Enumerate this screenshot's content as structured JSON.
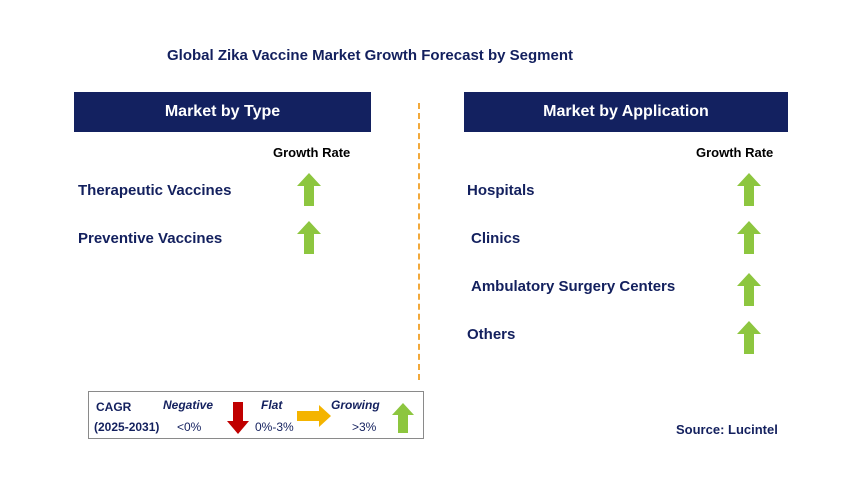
{
  "title": "Global Zika Vaccine Market Growth Forecast by Segment",
  "left_panel": {
    "header": "Market by Type",
    "growth_label": "Growth Rate",
    "items": [
      {
        "label": "Therapeutic Vaccines",
        "trend": "growing"
      },
      {
        "label": "Preventive Vaccines",
        "trend": "growing"
      }
    ]
  },
  "right_panel": {
    "header": "Market by Application",
    "growth_label": "Growth Rate",
    "items": [
      {
        "label": "Hospitals",
        "trend": "growing"
      },
      {
        "label": "Clinics",
        "trend": "growing"
      },
      {
        "label": "Ambulatory Surgery Centers",
        "trend": "growing"
      },
      {
        "label": "Others",
        "trend": "growing"
      }
    ]
  },
  "legend": {
    "cagr_label": "CAGR",
    "period": "(2025-2031)",
    "negative_label": "Negative",
    "negative_range": "<0%",
    "flat_label": "Flat",
    "flat_range": "0%-3%",
    "growing_label": "Growing",
    "growing_range": ">3%"
  },
  "source": "Source: Lucintel",
  "colors": {
    "header_bg": "#132160",
    "text_navy": "#13205e",
    "arrow_up": "#8dc63f",
    "arrow_down": "#c00000",
    "arrow_right": "#f4b400",
    "divider": "#f2a93b"
  },
  "icons": {
    "growing": "green-up-arrow-icon",
    "negative": "red-down-arrow-icon",
    "flat": "yellow-right-arrow-icon"
  }
}
